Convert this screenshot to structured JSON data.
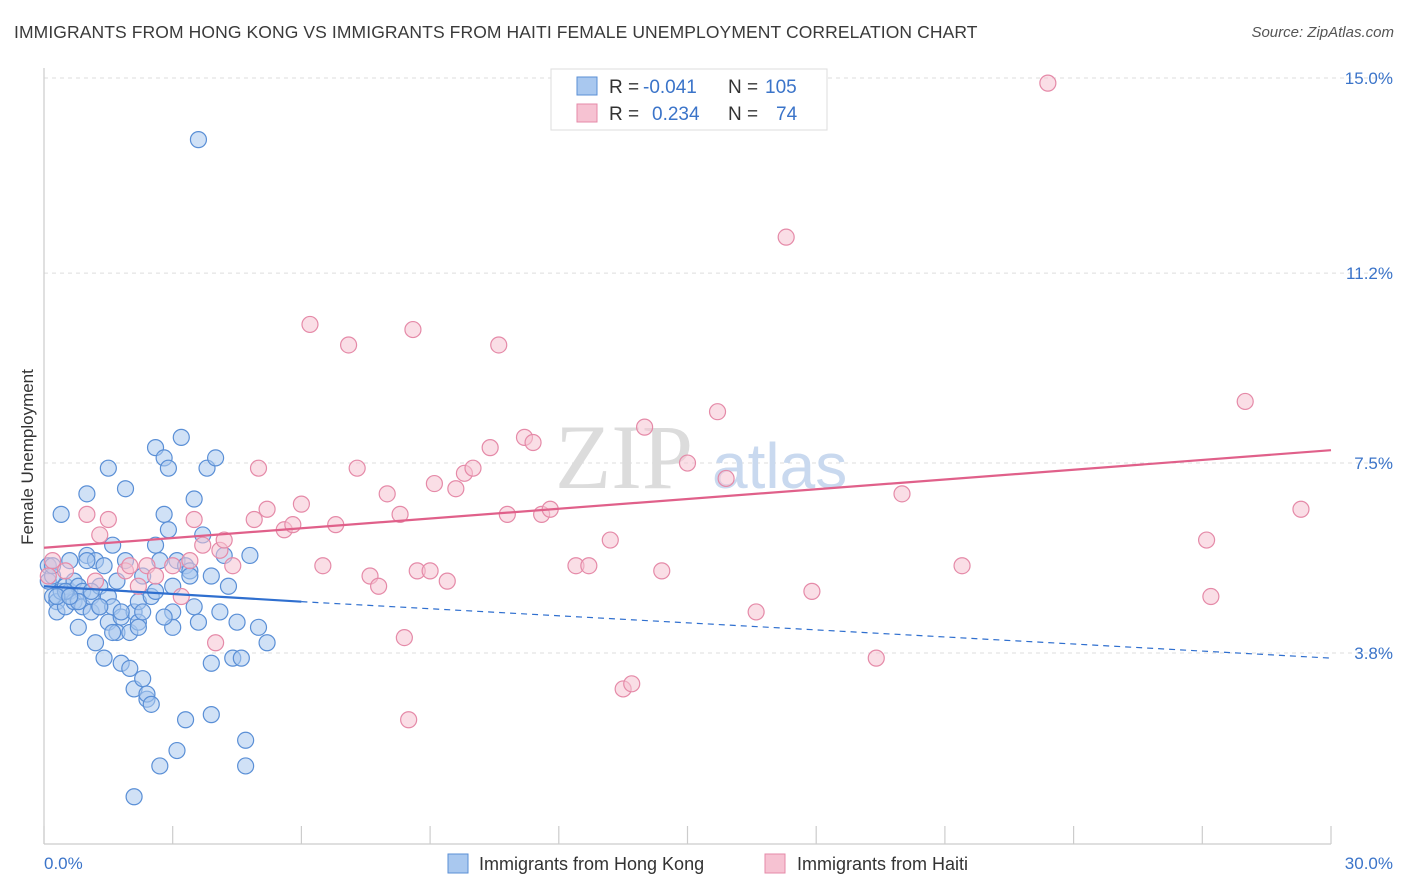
{
  "title": "IMMIGRANTS FROM HONG KONG VS IMMIGRANTS FROM HAITI FEMALE UNEMPLOYMENT CORRELATION CHART",
  "source": "Source: ZipAtlas.com",
  "watermark": {
    "zip": "ZIP",
    "atlas": "atlas"
  },
  "colors": {
    "blue_fill": "#a9c8ef",
    "blue_stroke": "#5a8fd6",
    "blue_line": "#2f6fcf",
    "pink_fill": "#f6c2d2",
    "pink_stroke": "#e58aa8",
    "pink_line": "#e0608a",
    "grid": "#dddddd",
    "axis_text": "#3b74c9"
  },
  "legend": {
    "rows": [
      {
        "r_label": "R =",
        "r_value": "-0.041",
        "n_label": "N =",
        "n_value": "105"
      },
      {
        "r_label": "R =",
        "r_value": "0.234",
        "n_label": "N =",
        "n_value": "74"
      }
    ]
  },
  "bottom_legend": [
    "Immigrants from Hong Kong",
    "Immigrants from Haiti"
  ],
  "chart_data": {
    "type": "scatter",
    "ylabel": "Female Unemployment",
    "x_tick_labels": [
      "0.0%",
      "30.0%"
    ],
    "y_tick_labels": [
      "3.8%",
      "7.5%",
      "11.2%",
      "15.0%"
    ],
    "y_ticks": [
      3.8,
      7.5,
      11.2,
      15.0
    ],
    "xlim": [
      0,
      30
    ],
    "ylim": [
      0,
      15.5
    ],
    "grid": true,
    "legend_position": "top-center",
    "series": [
      {
        "name": "Immigrants from Hong Kong",
        "trend": {
          "x": [
            0,
            6
          ],
          "y": [
            5.1,
            4.8
          ],
          "dashed_to": [
            30,
            3.7
          ]
        },
        "points": [
          [
            0.1,
            5.2
          ],
          [
            0.1,
            5.5
          ],
          [
            0.2,
            5.3
          ],
          [
            0.2,
            4.9
          ],
          [
            0.3,
            4.8
          ],
          [
            0.3,
            4.6
          ],
          [
            0.4,
            5.0
          ],
          [
            0.4,
            6.5
          ],
          [
            0.5,
            5.1
          ],
          [
            0.5,
            4.7
          ],
          [
            0.6,
            5.0
          ],
          [
            0.6,
            5.6
          ],
          [
            0.7,
            5.2
          ],
          [
            0.7,
            4.8
          ],
          [
            0.8,
            5.1
          ],
          [
            0.8,
            4.3
          ],
          [
            0.9,
            5.0
          ],
          [
            0.9,
            4.7
          ],
          [
            1.0,
            6.9
          ],
          [
            1.0,
            5.7
          ],
          [
            1.1,
            4.6
          ],
          [
            1.1,
            4.9
          ],
          [
            1.2,
            5.6
          ],
          [
            1.2,
            4.0
          ],
          [
            1.3,
            4.7
          ],
          [
            1.3,
            5.1
          ],
          [
            1.4,
            3.7
          ],
          [
            1.4,
            5.5
          ],
          [
            1.5,
            4.9
          ],
          [
            1.5,
            4.4
          ],
          [
            1.6,
            4.7
          ],
          [
            1.6,
            5.9
          ],
          [
            1.7,
            4.2
          ],
          [
            1.7,
            5.2
          ],
          [
            1.8,
            4.5
          ],
          [
            1.8,
            3.6
          ],
          [
            1.9,
            7.0
          ],
          [
            1.9,
            5.6
          ],
          [
            2.0,
            4.2
          ],
          [
            2.0,
            3.5
          ],
          [
            2.1,
            4.6
          ],
          [
            2.1,
            3.1
          ],
          [
            2.2,
            4.8
          ],
          [
            2.2,
            4.4
          ],
          [
            2.3,
            5.3
          ],
          [
            2.3,
            3.3
          ],
          [
            2.4,
            2.9
          ],
          [
            2.4,
            3.0
          ],
          [
            2.5,
            2.8
          ],
          [
            2.5,
            4.9
          ],
          [
            2.6,
            7.8
          ],
          [
            2.6,
            5.9
          ],
          [
            2.7,
            5.6
          ],
          [
            2.8,
            7.6
          ],
          [
            2.8,
            6.5
          ],
          [
            2.9,
            6.2
          ],
          [
            2.9,
            7.4
          ],
          [
            3.0,
            4.6
          ],
          [
            3.0,
            4.3
          ],
          [
            3.1,
            5.6
          ],
          [
            3.2,
            8.0
          ],
          [
            3.3,
            5.5
          ],
          [
            3.4,
            5.4
          ],
          [
            3.5,
            6.8
          ],
          [
            3.5,
            4.7
          ],
          [
            3.6,
            4.4
          ],
          [
            3.7,
            6.1
          ],
          [
            3.8,
            7.4
          ],
          [
            3.9,
            5.3
          ],
          [
            4.0,
            7.6
          ],
          [
            4.1,
            4.6
          ],
          [
            4.2,
            5.7
          ],
          [
            4.3,
            5.1
          ],
          [
            4.4,
            3.7
          ],
          [
            4.5,
            4.4
          ],
          [
            4.6,
            3.7
          ],
          [
            4.7,
            2.1
          ],
          [
            4.8,
            5.7
          ],
          [
            5.0,
            4.3
          ],
          [
            5.2,
            4.0
          ],
          [
            3.6,
            13.8
          ],
          [
            1.5,
            7.4
          ],
          [
            1.0,
            5.6
          ],
          [
            0.5,
            5.0
          ],
          [
            0.3,
            4.9
          ],
          [
            0.8,
            4.8
          ],
          [
            1.3,
            4.7
          ],
          [
            1.8,
            4.6
          ],
          [
            2.3,
            4.6
          ],
          [
            2.8,
            4.5
          ],
          [
            3.9,
            3.6
          ],
          [
            3.3,
            2.5
          ],
          [
            3.9,
            2.6
          ],
          [
            2.7,
            1.6
          ],
          [
            3.1,
            1.9
          ],
          [
            2.1,
            1.0
          ],
          [
            4.7,
            1.6
          ],
          [
            0.2,
            5.5
          ],
          [
            0.6,
            4.9
          ],
          [
            1.1,
            5.0
          ],
          [
            1.6,
            4.2
          ],
          [
            2.2,
            4.3
          ],
          [
            2.6,
            5.0
          ],
          [
            3.0,
            5.1
          ],
          [
            3.4,
            5.3
          ]
        ]
      },
      {
        "name": "Immigrants from Haiti",
        "trend": {
          "x": [
            0,
            30
          ],
          "y": [
            5.85,
            7.75
          ]
        },
        "points": [
          [
            0.1,
            5.3
          ],
          [
            0.2,
            5.6
          ],
          [
            0.5,
            5.4
          ],
          [
            1.0,
            6.5
          ],
          [
            1.2,
            5.2
          ],
          [
            1.3,
            6.1
          ],
          [
            1.5,
            6.4
          ],
          [
            1.9,
            5.4
          ],
          [
            2.0,
            5.5
          ],
          [
            2.2,
            5.1
          ],
          [
            2.4,
            5.5
          ],
          [
            2.6,
            5.3
          ],
          [
            3.0,
            5.5
          ],
          [
            3.2,
            4.9
          ],
          [
            3.4,
            5.6
          ],
          [
            3.5,
            6.4
          ],
          [
            3.7,
            5.9
          ],
          [
            4.1,
            5.8
          ],
          [
            4.2,
            6.0
          ],
          [
            4.4,
            5.5
          ],
          [
            4.9,
            6.4
          ],
          [
            5.0,
            7.4
          ],
          [
            5.2,
            6.6
          ],
          [
            5.6,
            6.2
          ],
          [
            5.8,
            6.3
          ],
          [
            6.0,
            6.7
          ],
          [
            6.2,
            10.2
          ],
          [
            6.5,
            5.5
          ],
          [
            6.8,
            6.3
          ],
          [
            7.1,
            9.8
          ],
          [
            7.3,
            7.4
          ],
          [
            7.6,
            5.3
          ],
          [
            7.8,
            5.1
          ],
          [
            8.0,
            6.9
          ],
          [
            8.3,
            6.5
          ],
          [
            8.4,
            4.1
          ],
          [
            8.5,
            2.5
          ],
          [
            8.6,
            10.1
          ],
          [
            8.7,
            5.4
          ],
          [
            9.0,
            5.4
          ],
          [
            9.1,
            7.1
          ],
          [
            9.4,
            5.2
          ],
          [
            9.6,
            7.0
          ],
          [
            9.8,
            7.3
          ],
          [
            10.0,
            7.4
          ],
          [
            10.4,
            7.8
          ],
          [
            10.6,
            9.8
          ],
          [
            10.8,
            6.5
          ],
          [
            11.2,
            8.0
          ],
          [
            11.4,
            7.9
          ],
          [
            11.6,
            6.5
          ],
          [
            11.8,
            6.6
          ],
          [
            12.4,
            5.5
          ],
          [
            12.7,
            5.5
          ],
          [
            13.2,
            6.0
          ],
          [
            13.5,
            3.1
          ],
          [
            13.7,
            3.2
          ],
          [
            14.0,
            8.2
          ],
          [
            14.4,
            5.4
          ],
          [
            15.0,
            7.5
          ],
          [
            15.7,
            8.5
          ],
          [
            15.9,
            7.2
          ],
          [
            16.6,
            4.6
          ],
          [
            17.3,
            11.9
          ],
          [
            17.9,
            5.0
          ],
          [
            19.4,
            3.7
          ],
          [
            20.0,
            6.9
          ],
          [
            21.4,
            5.5
          ],
          [
            23.4,
            14.9
          ],
          [
            27.1,
            6.0
          ],
          [
            27.2,
            4.9
          ],
          [
            28.0,
            8.7
          ],
          [
            29.3,
            6.6
          ],
          [
            4.0,
            4.0
          ]
        ]
      }
    ]
  }
}
